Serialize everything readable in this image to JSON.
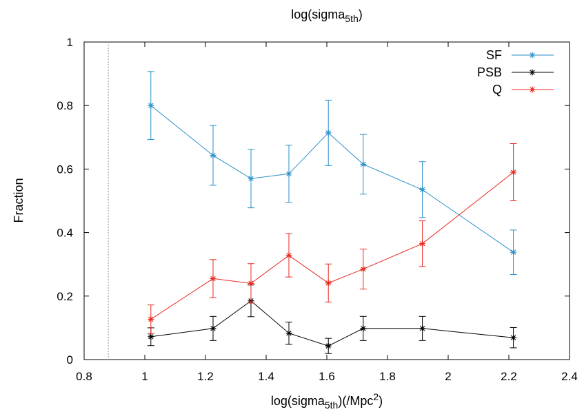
{
  "chart_data": {
    "type": "line",
    "title_top": "log(sigma",
    "title_top_sub": "5th",
    "title_top_end": ")",
    "xlabel": "log(sigma",
    "xlabel_sub": "5th",
    "xlabel_mid": ")(/Mpc",
    "xlabel_sup": "2",
    "xlabel_end": ")",
    "ylabel": "Fraction",
    "xlim": [
      0.8,
      2.4
    ],
    "ylim": [
      0,
      1
    ],
    "xticks": [
      0.8,
      1,
      1.2,
      1.4,
      1.6,
      1.8,
      2,
      2.2,
      2.4
    ],
    "xtick_labels": [
      "0.8",
      "1",
      "1.2",
      "1.4",
      "1.6",
      "1.8",
      "2",
      "2.2",
      "2.4"
    ],
    "yticks": [
      0,
      0.2,
      0.4,
      0.6,
      0.8,
      1
    ],
    "ytick_labels": [
      "0",
      "0.2",
      "0.4",
      "0.6",
      "0.8",
      "1"
    ],
    "vline_x": 0.88,
    "legend_position": "top-right",
    "x": [
      1.02,
      1.225,
      1.35,
      1.475,
      1.605,
      1.72,
      1.915,
      2.215
    ],
    "series": [
      {
        "name": "SF",
        "color": "#2a8fc9",
        "values": [
          0.8,
          0.643,
          0.57,
          0.585,
          0.714,
          0.615,
          0.535,
          0.338
        ],
        "errors": [
          0.107,
          0.094,
          0.092,
          0.09,
          0.103,
          0.094,
          0.088,
          0.07
        ]
      },
      {
        "name": "PSB",
        "color": "#000000",
        "values": [
          0.072,
          0.098,
          0.185,
          0.083,
          0.043,
          0.098,
          0.098,
          0.069
        ],
        "errors": [
          0.028,
          0.038,
          0.05,
          0.035,
          0.024,
          0.038,
          0.038,
          0.032
        ]
      },
      {
        "name": "Q",
        "color": "#e8261c",
        "values": [
          0.127,
          0.255,
          0.24,
          0.328,
          0.241,
          0.285,
          0.365,
          0.59
        ],
        "errors": [
          0.045,
          0.06,
          0.062,
          0.068,
          0.06,
          0.063,
          0.072,
          0.09
        ]
      }
    ]
  }
}
